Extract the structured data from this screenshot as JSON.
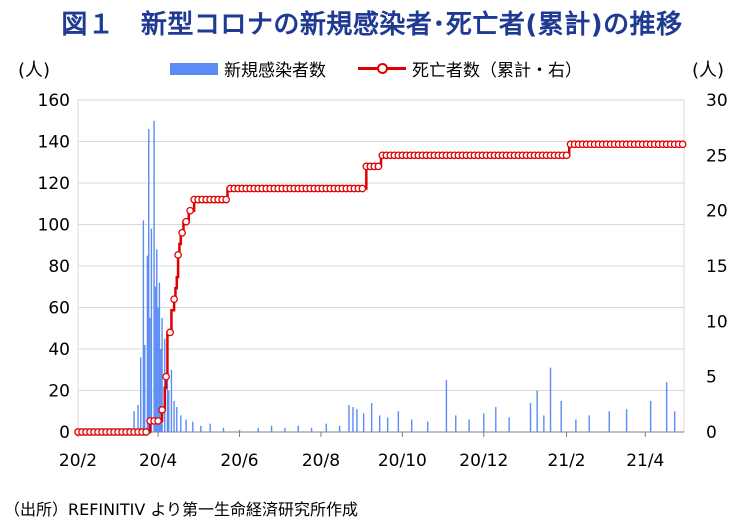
{
  "title": "図１　新型コロナの新規感染者･死亡者(累計)の推移",
  "source": "（出所）REFINITIV より第一生命経済研究所作成",
  "chart_data": {
    "type": "bar+line",
    "title": "図１　新型コロナの新規感染者･死亡者(累計)の推移",
    "y_left_unit": "(人)",
    "y_right_unit": "(人)",
    "y_left": {
      "min": 0,
      "max": 160,
      "ticks": [
        0,
        20,
        40,
        60,
        80,
        100,
        120,
        140,
        160
      ]
    },
    "y_right": {
      "min": 0,
      "max": 30,
      "ticks": [
        0,
        5,
        10,
        15,
        20,
        25,
        30
      ]
    },
    "x_tick_labels": [
      "20/2",
      "20/4",
      "20/6",
      "20/8",
      "20/10",
      "20/12",
      "21/2",
      "21/4"
    ],
    "x_start": "2020-02-01",
    "x_end": "2021-04-30",
    "grid": true,
    "legend_position": "top",
    "series": [
      {
        "name": "新規感染者数",
        "kind": "bar",
        "axis": "left",
        "color": "#5b8cf5",
        "points": [
          [
            "2020-03-10",
            2
          ],
          [
            "2020-03-14",
            10
          ],
          [
            "2020-03-17",
            13
          ],
          [
            "2020-03-19",
            36
          ],
          [
            "2020-03-21",
            102
          ],
          [
            "2020-03-22",
            42
          ],
          [
            "2020-03-24",
            85
          ],
          [
            "2020-03-25",
            146
          ],
          [
            "2020-03-26",
            55
          ],
          [
            "2020-03-27",
            98
          ],
          [
            "2020-03-29",
            150
          ],
          [
            "2020-03-30",
            70
          ],
          [
            "2020-03-31",
            88
          ],
          [
            "2020-04-01",
            60
          ],
          [
            "2020-04-02",
            72
          ],
          [
            "2020-04-03",
            40
          ],
          [
            "2020-04-04",
            55
          ],
          [
            "2020-04-06",
            45
          ],
          [
            "2020-04-08",
            35
          ],
          [
            "2020-04-09",
            20
          ],
          [
            "2020-04-11",
            30
          ],
          [
            "2020-04-13",
            15
          ],
          [
            "2020-04-15",
            12
          ],
          [
            "2020-04-18",
            8
          ],
          [
            "2020-04-22",
            6
          ],
          [
            "2020-04-27",
            5
          ],
          [
            "2020-05-03",
            3
          ],
          [
            "2020-05-10",
            4
          ],
          [
            "2020-05-20",
            2
          ],
          [
            "2020-06-01",
            1
          ],
          [
            "2020-06-15",
            2
          ],
          [
            "2020-06-25",
            3
          ],
          [
            "2020-07-05",
            2
          ],
          [
            "2020-07-15",
            3
          ],
          [
            "2020-07-25",
            2
          ],
          [
            "2020-08-05",
            4
          ],
          [
            "2020-08-15",
            3
          ],
          [
            "2020-08-22",
            13
          ],
          [
            "2020-08-25",
            12
          ],
          [
            "2020-08-28",
            11
          ],
          [
            "2020-09-02",
            9
          ],
          [
            "2020-09-08",
            14
          ],
          [
            "2020-09-14",
            8
          ],
          [
            "2020-09-20",
            7
          ],
          [
            "2020-09-28",
            10
          ],
          [
            "2020-10-08",
            6
          ],
          [
            "2020-10-20",
            5
          ],
          [
            "2020-11-03",
            25
          ],
          [
            "2020-11-10",
            8
          ],
          [
            "2020-11-20",
            6
          ],
          [
            "2020-12-01",
            9
          ],
          [
            "2020-12-10",
            12
          ],
          [
            "2020-12-20",
            7
          ],
          [
            "2021-01-05",
            14
          ],
          [
            "2021-01-10",
            20
          ],
          [
            "2021-01-15",
            8
          ],
          [
            "2021-01-20",
            31
          ],
          [
            "2021-01-28",
            15
          ],
          [
            "2021-02-08",
            6
          ],
          [
            "2021-02-18",
            8
          ],
          [
            "2021-03-05",
            10
          ],
          [
            "2021-03-18",
            11
          ],
          [
            "2021-04-05",
            15
          ],
          [
            "2021-04-17",
            24
          ],
          [
            "2021-04-23",
            10
          ]
        ]
      },
      {
        "name": "死亡者数（累計・右）",
        "kind": "line",
        "axis": "right",
        "color": "#e00000",
        "steps": [
          [
            "2020-02-01",
            0
          ],
          [
            "2020-03-25",
            0
          ],
          [
            "2020-03-26",
            1
          ],
          [
            "2020-04-03",
            1
          ],
          [
            "2020-04-04",
            2
          ],
          [
            "2020-04-06",
            4
          ],
          [
            "2020-04-07",
            5
          ],
          [
            "2020-04-08",
            9
          ],
          [
            "2020-04-11",
            11
          ],
          [
            "2020-04-13",
            12
          ],
          [
            "2020-04-14",
            13
          ],
          [
            "2020-04-15",
            14
          ],
          [
            "2020-04-16",
            16
          ],
          [
            "2020-04-17",
            17
          ],
          [
            "2020-04-18",
            18
          ],
          [
            "2020-04-20",
            19
          ],
          [
            "2020-04-24",
            20
          ],
          [
            "2020-04-28",
            21
          ],
          [
            "2020-05-20",
            21
          ],
          [
            "2020-05-23",
            22
          ],
          [
            "2020-09-02",
            22
          ],
          [
            "2020-09-04",
            24
          ],
          [
            "2020-09-15",
            25
          ],
          [
            "2021-02-01",
            25
          ],
          [
            "2021-02-03",
            26
          ],
          [
            "2021-04-30",
            26
          ]
        ]
      }
    ]
  }
}
